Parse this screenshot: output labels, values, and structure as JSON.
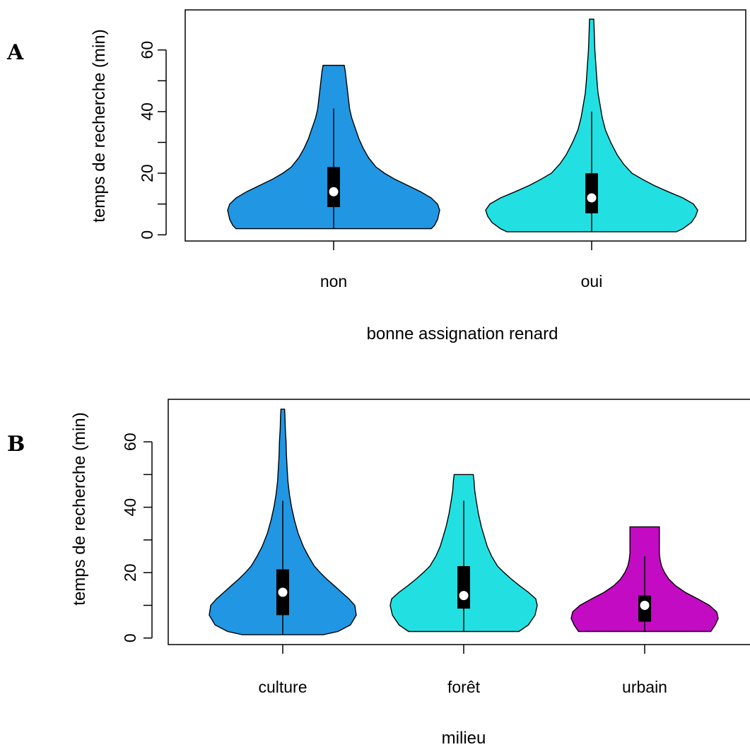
{
  "panels": [
    {
      "letter": "A",
      "chart_data": {
        "type": "violin",
        "xlabel": "bonne assignation renard",
        "ylabel": "temps de recherche (min)",
        "ylim": [
          -2,
          73
        ],
        "yticks": [
          0,
          20,
          40,
          60
        ],
        "categories": [
          "non",
          "oui"
        ],
        "colors": [
          "#2196E3",
          "#22E0E2"
        ],
        "violins": [
          {
            "category": "non",
            "min": 2,
            "q1": 9,
            "median": 14,
            "q3": 22,
            "whisker_high": 41,
            "max": 55,
            "density": [
              [
                2,
                0.92
              ],
              [
                3,
                0.95
              ],
              [
                5,
                0.98
              ],
              [
                8,
                1.0
              ],
              [
                10,
                0.98
              ],
              [
                12,
                0.92
              ],
              [
                14,
                0.82
              ],
              [
                16,
                0.7
              ],
              [
                18,
                0.58
              ],
              [
                20,
                0.48
              ],
              [
                22,
                0.4
              ],
              [
                25,
                0.33
              ],
              [
                28,
                0.28
              ],
              [
                31,
                0.24
              ],
              [
                35,
                0.2
              ],
              [
                38,
                0.17
              ],
              [
                41,
                0.15
              ],
              [
                44,
                0.14
              ],
              [
                47,
                0.13
              ],
              [
                50,
                0.12
              ],
              [
                53,
                0.11
              ],
              [
                55,
                0.1
              ]
            ]
          },
          {
            "category": "oui",
            "min": 1,
            "q1": 7,
            "median": 12,
            "q3": 20,
            "whisker_high": 40,
            "max": 70,
            "density": [
              [
                1,
                0.8
              ],
              [
                2,
                0.86
              ],
              [
                4,
                0.94
              ],
              [
                6,
                0.98
              ],
              [
                8,
                1.0
              ],
              [
                10,
                0.96
              ],
              [
                12,
                0.86
              ],
              [
                14,
                0.72
              ],
              [
                16,
                0.59
              ],
              [
                18,
                0.48
              ],
              [
                20,
                0.38
              ],
              [
                23,
                0.3
              ],
              [
                26,
                0.24
              ],
              [
                30,
                0.18
              ],
              [
                34,
                0.13
              ],
              [
                38,
                0.1
              ],
              [
                42,
                0.08
              ],
              [
                46,
                0.06
              ],
              [
                50,
                0.05
              ],
              [
                55,
                0.04
              ],
              [
                60,
                0.03
              ],
              [
                65,
                0.025
              ],
              [
                70,
                0.02
              ]
            ]
          }
        ]
      }
    },
    {
      "letter": "B",
      "chart_data": {
        "type": "violin",
        "xlabel": "milieu",
        "ylabel": "temps de recherche (min)",
        "ylim": [
          -2,
          73
        ],
        "yticks": [
          0,
          20,
          40,
          60
        ],
        "categories": [
          "culture",
          "forêt",
          "urbain"
        ],
        "colors": [
          "#2196E3",
          "#22E0E2",
          "#C20BC2"
        ],
        "violins": [
          {
            "category": "culture",
            "min": 1,
            "q1": 7,
            "median": 14,
            "q3": 21,
            "whisker_high": 42,
            "max": 70,
            "density": [
              [
                1,
                0.55
              ],
              [
                2,
                0.75
              ],
              [
                4,
                0.92
              ],
              [
                7,
                1.0
              ],
              [
                10,
                0.98
              ],
              [
                12,
                0.9
              ],
              [
                14,
                0.8
              ],
              [
                16,
                0.7
              ],
              [
                18,
                0.6
              ],
              [
                20,
                0.51
              ],
              [
                22,
                0.43
              ],
              [
                25,
                0.35
              ],
              [
                28,
                0.28
              ],
              [
                32,
                0.21
              ],
              [
                36,
                0.16
              ],
              [
                40,
                0.12
              ],
              [
                44,
                0.09
              ],
              [
                48,
                0.07
              ],
              [
                52,
                0.06
              ],
              [
                56,
                0.05
              ],
              [
                60,
                0.045
              ],
              [
                64,
                0.035
              ],
              [
                68,
                0.03
              ],
              [
                70,
                0.025
              ]
            ]
          },
          {
            "category": "forêt",
            "min": 2,
            "q1": 9,
            "median": 13,
            "q3": 22,
            "whisker_high": 42,
            "max": 50,
            "density": [
              [
                2,
                0.75
              ],
              [
                4,
                0.88
              ],
              [
                7,
                0.97
              ],
              [
                10,
                1.0
              ],
              [
                12,
                0.98
              ],
              [
                14,
                0.88
              ],
              [
                16,
                0.76
              ],
              [
                18,
                0.65
              ],
              [
                20,
                0.55
              ],
              [
                22,
                0.46
              ],
              [
                25,
                0.38
              ],
              [
                28,
                0.32
              ],
              [
                31,
                0.28
              ],
              [
                34,
                0.24
              ],
              [
                38,
                0.2
              ],
              [
                42,
                0.17
              ],
              [
                45,
                0.15
              ],
              [
                48,
                0.14
              ],
              [
                50,
                0.13
              ]
            ]
          },
          {
            "category": "urbain",
            "min": 2,
            "q1": 5,
            "median": 10,
            "q3": 13,
            "whisker_high": 25,
            "max": 34,
            "density": [
              [
                2,
                0.9
              ],
              [
                4,
                0.96
              ],
              [
                6,
                1.0
              ],
              [
                8,
                0.98
              ],
              [
                10,
                0.88
              ],
              [
                12,
                0.72
              ],
              [
                14,
                0.55
              ],
              [
                16,
                0.42
              ],
              [
                18,
                0.33
              ],
              [
                20,
                0.27
              ],
              [
                22,
                0.23
              ],
              [
                24,
                0.21
              ],
              [
                26,
                0.2
              ],
              [
                28,
                0.2
              ],
              [
                30,
                0.2
              ],
              [
                32,
                0.2
              ],
              [
                34,
                0.2
              ]
            ]
          }
        ]
      }
    }
  ]
}
